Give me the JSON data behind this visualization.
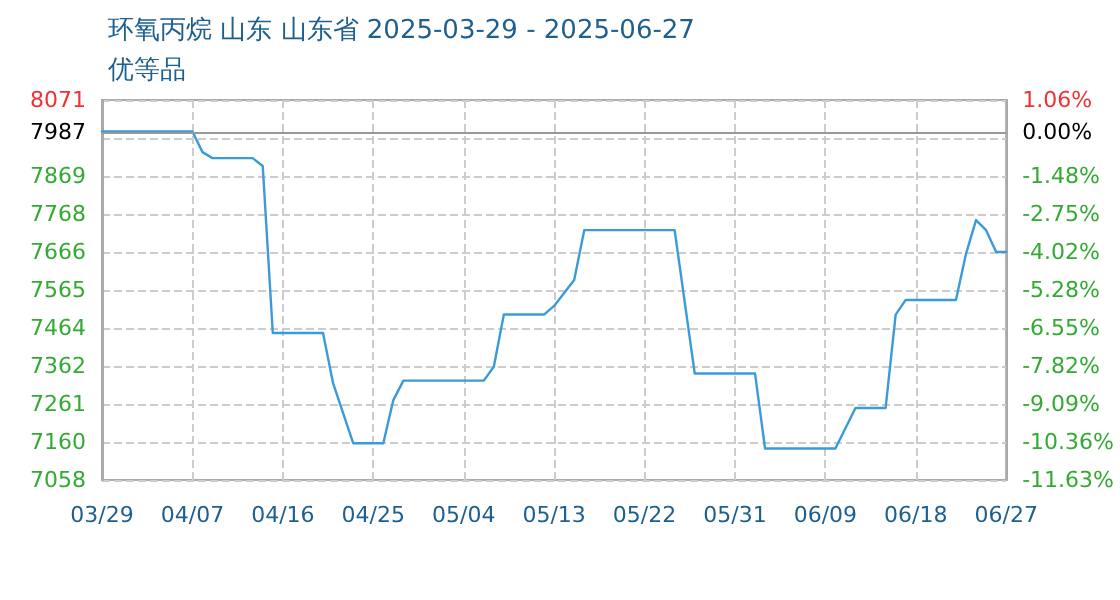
{
  "chart_data": {
    "type": "line",
    "title": "环氧丙烷 山东 山东省 2025-03-29 - 2025-06-27",
    "subtitle": "优等品",
    "x": [
      "2025-03-29",
      "2025-04-07",
      "2025-04-08",
      "2025-04-09",
      "2025-04-13",
      "2025-04-14",
      "2025-04-15",
      "2025-04-20",
      "2025-04-21",
      "2025-04-23",
      "2025-04-26",
      "2025-04-27",
      "2025-04-28",
      "2025-05-06",
      "2025-05-07",
      "2025-05-08",
      "2025-05-12",
      "2025-05-13",
      "2025-05-15",
      "2025-05-16",
      "2025-05-25",
      "2025-05-27",
      "2025-06-02",
      "2025-06-03",
      "2025-06-10",
      "2025-06-12",
      "2025-06-15",
      "2025-06-16",
      "2025-06-17",
      "2025-06-22",
      "2025-06-23",
      "2025-06-24",
      "2025-06-25",
      "2025-06-26",
      "2025-06-27"
    ],
    "series": [
      {
        "color": "#3b9ad9",
        "values": [
          7987,
          7987,
          7932,
          7916,
          7916,
          7895,
          7450,
          7450,
          7316,
          7156,
          7156,
          7271,
          7323,
          7323,
          7360,
          7499,
          7499,
          7522,
          7591,
          7724,
          7724,
          7342,
          7342,
          7142,
          7142,
          7250,
          7250,
          7499,
          7538,
          7538,
          7661,
          7751,
          7724,
          7666,
          7666
        ]
      }
    ],
    "xlim": [
      "2025-03-29",
      "2025-06-27"
    ],
    "xticks": [
      {
        "value": "2025-03-29",
        "label": "03/29"
      },
      {
        "value": "2025-04-07",
        "label": "04/07"
      },
      {
        "value": "2025-04-16",
        "label": "04/16"
      },
      {
        "value": "2025-04-25",
        "label": "04/25"
      },
      {
        "value": "2025-05-04",
        "label": "05/04"
      },
      {
        "value": "2025-05-13",
        "label": "05/13"
      },
      {
        "value": "2025-05-22",
        "label": "05/22"
      },
      {
        "value": "2025-05-31",
        "label": "05/31"
      },
      {
        "value": "2025-06-09",
        "label": "06/09"
      },
      {
        "value": "2025-06-18",
        "label": "06/18"
      },
      {
        "value": "2025-06-27",
        "label": "06/27"
      }
    ],
    "ylim": [
      7058,
      8071
    ],
    "yticks": [
      7058,
      7160,
      7261,
      7362,
      7464,
      7565,
      7666,
      7768,
      7869,
      {
        "value": 7970,
        "label": null
      },
      8071
    ],
    "y2lim": [
      -11.63,
      1.06
    ],
    "y2ticks": [
      {
        "value": -11.63,
        "label": "-11.63%"
      },
      {
        "value": -10.36,
        "label": "-10.36%"
      },
      {
        "value": -9.09,
        "label": "-9.09%"
      },
      {
        "value": -7.82,
        "label": "-7.82%"
      },
      {
        "value": -6.55,
        "label": "-6.55%"
      },
      {
        "value": -5.28,
        "label": "-5.28%"
      },
      {
        "value": -4.02,
        "label": "-4.02%"
      },
      {
        "value": -2.75,
        "label": "-2.75%"
      },
      {
        "value": -1.48,
        "label": "-1.48%"
      },
      {
        "value": -0.21,
        "label": null
      },
      {
        "value": 0,
        "label": "0.00%"
      },
      {
        "value": 1.06,
        "label": "1.06%"
      }
    ],
    "ref_lines": [
      {
        "axis": "y",
        "value": 7987,
        "label": "7987",
        "color": "#999999"
      }
    ],
    "grid": true,
    "marker": "none",
    "line_style": "solid"
  }
}
